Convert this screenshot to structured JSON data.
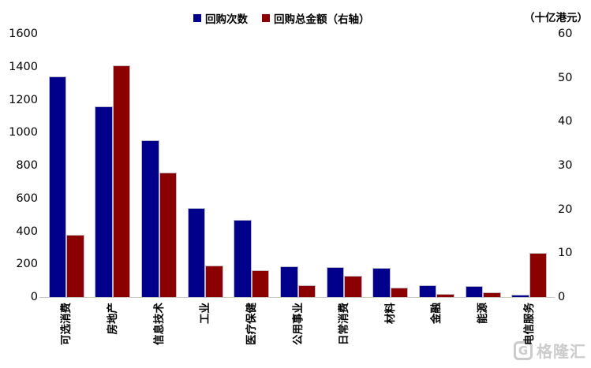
{
  "unit_label": "（十亿港元）",
  "legend": [
    {
      "label": "回购次数",
      "color": "#00008B"
    },
    {
      "label": "回购总金额（右轴）",
      "color": "#8B0000"
    }
  ],
  "watermark": {
    "logo": "G",
    "text": "格隆汇"
  },
  "chart_data": {
    "type": "bar",
    "title": "",
    "xlabel": "",
    "ylabel_left": "",
    "ylabel_right": "（十亿港元）",
    "grid": false,
    "legend_position": "top",
    "categories": [
      "可选消费",
      "房地产",
      "信息技术",
      "工业",
      "医疗保健",
      "公用事业",
      "日常消费",
      "材料",
      "金融",
      "能源",
      "电信服务"
    ],
    "series": [
      {
        "name": "回购次数",
        "axis": "left",
        "color": "#00008B",
        "values": [
          1340,
          1160,
          955,
          540,
          470,
          185,
          182,
          178,
          70,
          68,
          12
        ]
      },
      {
        "name": "回购总金额（右轴）",
        "axis": "right",
        "color": "#8B0000",
        "values": [
          14.2,
          52.8,
          28.3,
          7.1,
          6.1,
          2.7,
          4.9,
          2.2,
          0.8,
          1.1,
          10
        ]
      }
    ],
    "left_axis": {
      "min": 0,
      "max": 1600,
      "step": 200,
      "ticks": [
        1600,
        1400,
        1200,
        1000,
        800,
        600,
        400,
        200,
        0
      ]
    },
    "right_axis": {
      "min": 0,
      "max": 60,
      "step": 10,
      "ticks": [
        60,
        50,
        40,
        30,
        20,
        10,
        0
      ]
    }
  }
}
